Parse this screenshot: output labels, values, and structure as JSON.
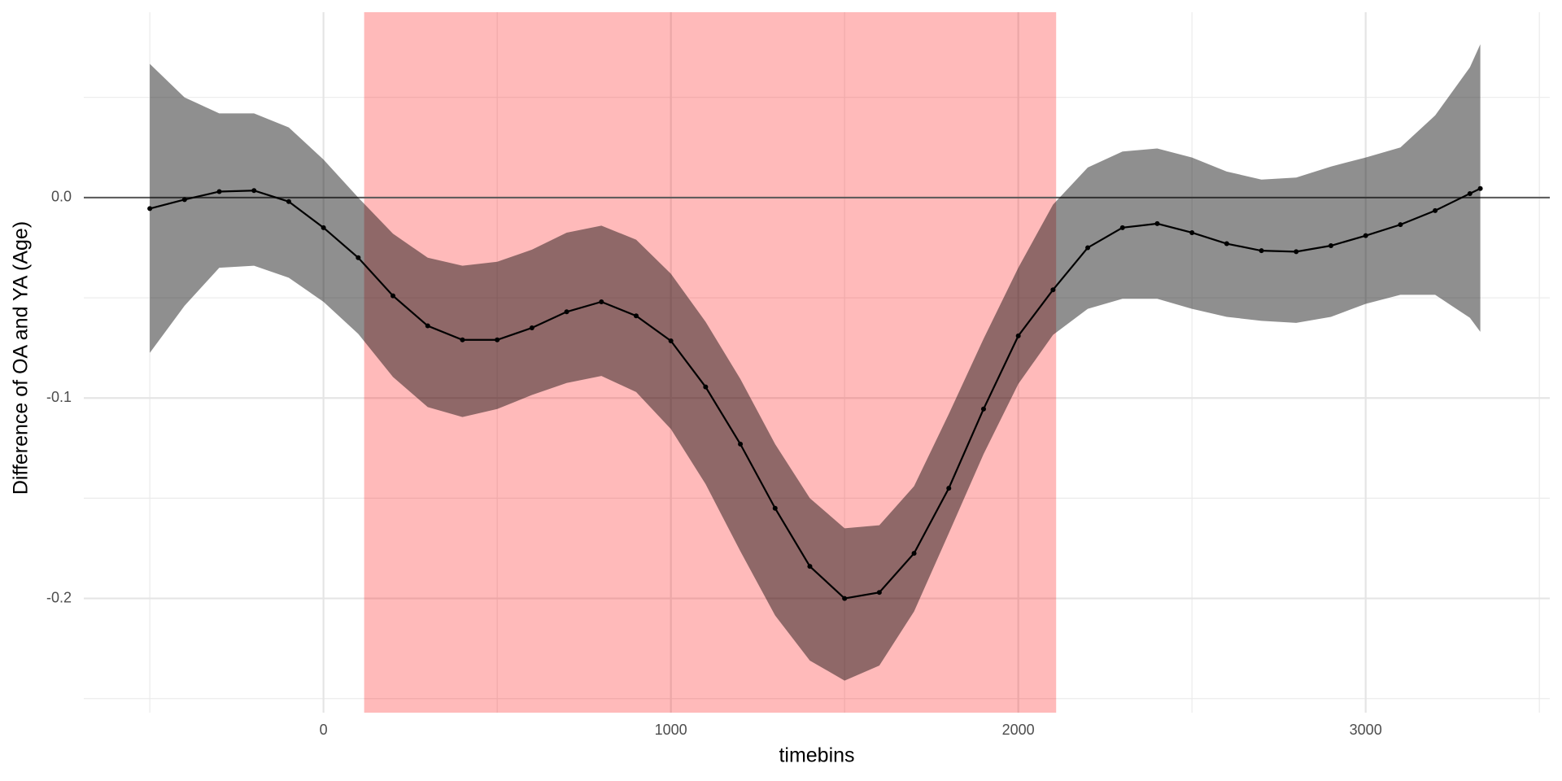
{
  "chart_data": {
    "type": "line",
    "x_label": "timebins",
    "y_label": "Difference of OA and YA (Age)",
    "x": [
      -500,
      -400,
      -300,
      -200,
      -100,
      0,
      100,
      200,
      300,
      400,
      500,
      600,
      700,
      800,
      900,
      1000,
      1100,
      1200,
      1300,
      1400,
      1500,
      1600,
      1700,
      1800,
      1900,
      2000,
      2100,
      2200,
      2300,
      2400,
      2500,
      2600,
      2700,
      2800,
      2900,
      3000,
      3100,
      3200,
      3300,
      3330
    ],
    "values": [
      -0.0055,
      -0.001,
      0.003,
      0.0035,
      -0.002,
      -0.015,
      -0.03,
      -0.049,
      -0.064,
      -0.071,
      -0.071,
      -0.065,
      -0.057,
      -0.052,
      -0.059,
      -0.0715,
      -0.0945,
      -0.123,
      -0.155,
      -0.184,
      -0.2,
      -0.197,
      -0.1775,
      -0.145,
      -0.1055,
      -0.069,
      -0.046,
      -0.025,
      -0.015,
      -0.013,
      -0.0175,
      -0.023,
      -0.0265,
      -0.027,
      -0.024,
      -0.019,
      -0.0135,
      -0.0065,
      0.002,
      0.0045
    ],
    "ci_upper": [
      0.0667,
      0.05,
      0.042,
      0.042,
      0.035,
      0.019,
      0.0,
      -0.018,
      -0.03,
      -0.034,
      -0.032,
      -0.026,
      -0.0175,
      -0.014,
      -0.021,
      -0.038,
      -0.062,
      -0.0905,
      -0.123,
      -0.15,
      -0.165,
      -0.1635,
      -0.144,
      -0.108,
      -0.0705,
      -0.035,
      -0.0035,
      0.015,
      0.023,
      0.0245,
      0.02,
      0.013,
      0.009,
      0.01,
      0.0155,
      0.02,
      0.025,
      0.041,
      0.065,
      0.0765
    ],
    "ci_lower": [
      -0.0775,
      -0.054,
      -0.035,
      -0.034,
      -0.04,
      -0.052,
      -0.068,
      -0.0895,
      -0.1045,
      -0.1095,
      -0.1055,
      -0.0985,
      -0.0925,
      -0.089,
      -0.097,
      -0.1155,
      -0.143,
      -0.1765,
      -0.2085,
      -0.231,
      -0.241,
      -0.2335,
      -0.2065,
      -0.1675,
      -0.128,
      -0.093,
      -0.0685,
      -0.0555,
      -0.0505,
      -0.0505,
      -0.0555,
      -0.0595,
      -0.0615,
      -0.0625,
      -0.0595,
      -0.053,
      -0.0485,
      -0.0485,
      -0.06,
      -0.067
    ],
    "color": "#000000",
    "ci_color": "#000000",
    "ci_opacity": 0.44,
    "highlight_x": [
      117,
      2109
    ],
    "highlight_color": "#ff0000",
    "highlight_opacity": 0.27,
    "hline": 0,
    "hline_color": "#595959",
    "xlim": [
      -690,
      3530
    ],
    "ylim": [
      -0.257,
      0.0925
    ],
    "xticks": [
      0,
      1000,
      2000,
      3000
    ],
    "xminor": [
      -500,
      500,
      1500,
      2500,
      3500
    ],
    "yticks": [
      {
        "value": -0.2,
        "label": "-0.2"
      },
      {
        "value": -0.1,
        "label": "-0.1"
      },
      {
        "value": 0,
        "label": "0.0"
      }
    ],
    "yminor": [
      -0.25,
      -0.15,
      -0.05,
      0.05
    ],
    "grid": true
  }
}
